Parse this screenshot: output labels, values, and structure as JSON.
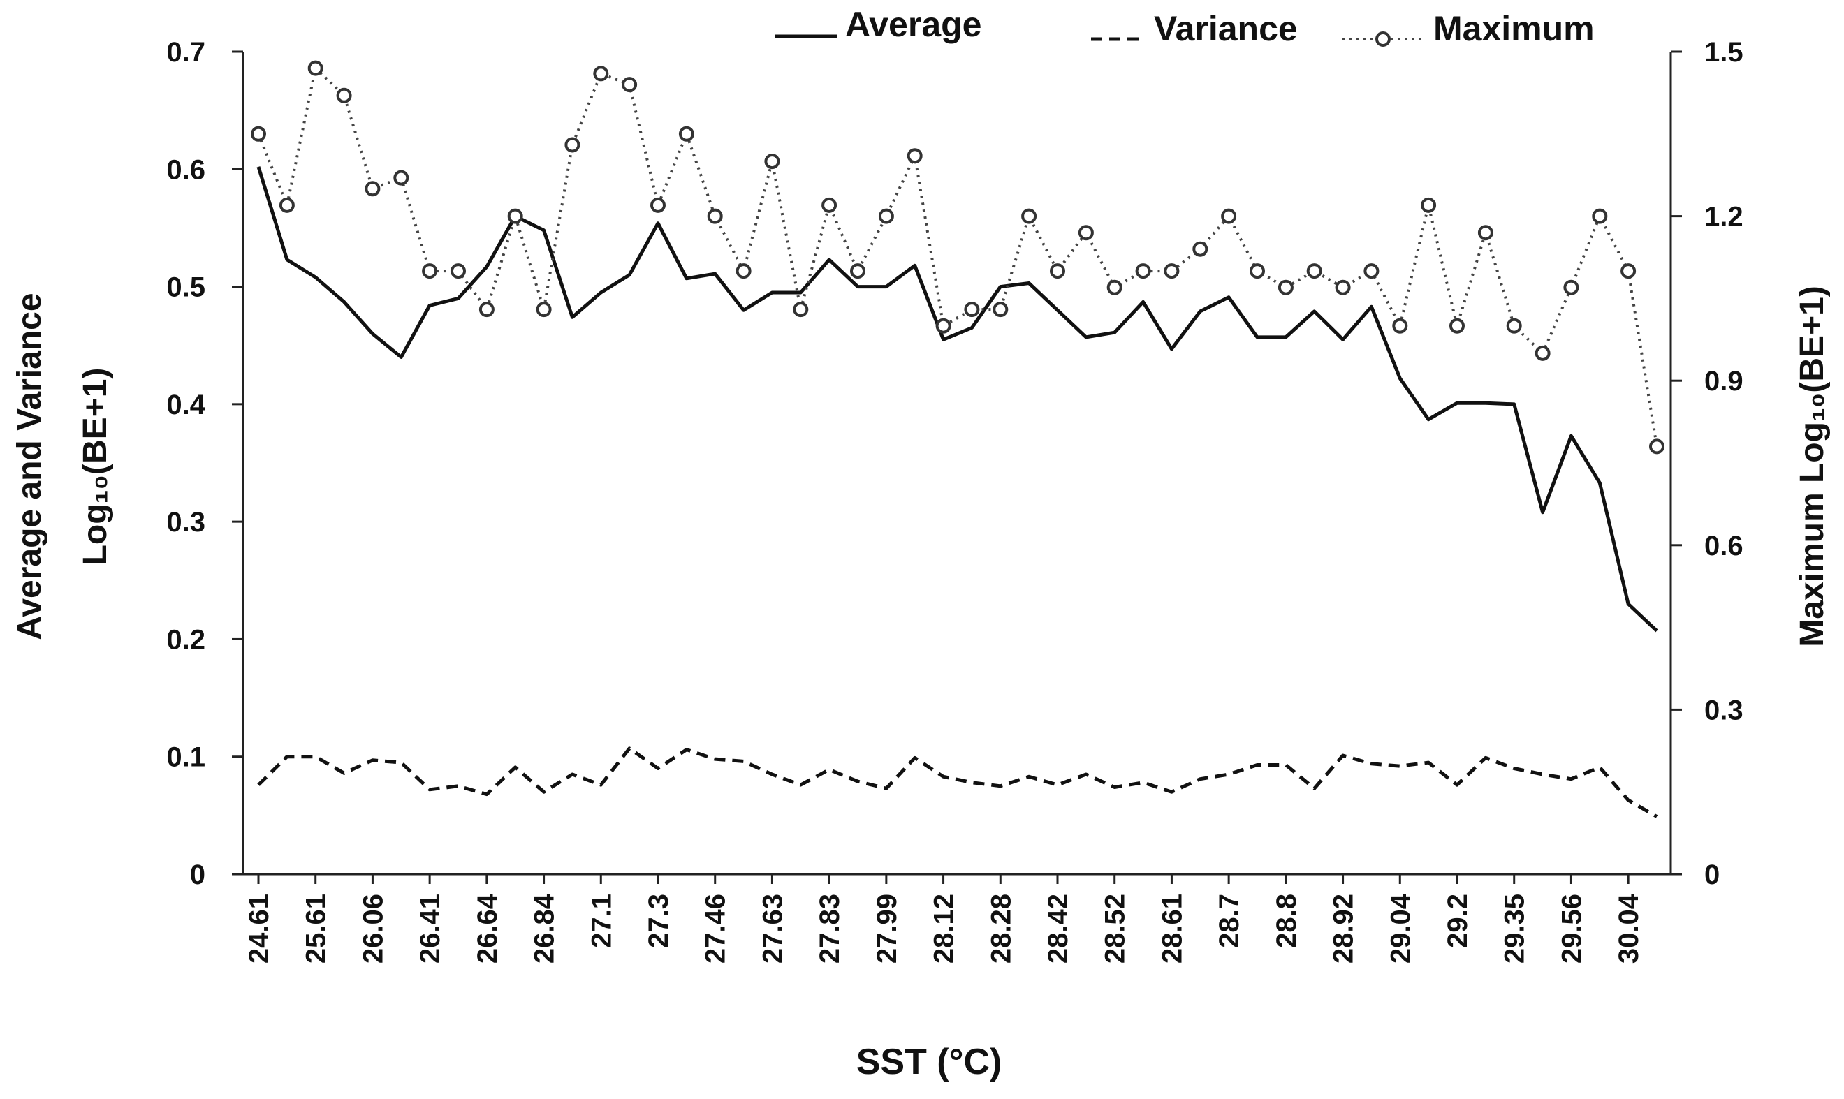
{
  "chart_data": {
    "type": "line",
    "xlabel": "SST (°C)",
    "ylabel_left_line1": "Average and Variance",
    "ylabel_left_line2": "Log₁₀(BE+1)",
    "ylabel_right": "Maximum Log₁₀(BE+1)",
    "ylim_left": [
      0,
      0.7
    ],
    "ylim_right": [
      0,
      1.5
    ],
    "yticks_left": [
      "0",
      "0.1",
      "0.2",
      "0.3",
      "0.4",
      "0.5",
      "0.6",
      "0.7"
    ],
    "yticks_right": [
      "0",
      "0.3",
      "0.6",
      "0.9",
      "1.2",
      "1.5"
    ],
    "x_tick_labels": [
      "24.61",
      "25.61",
      "26.06",
      "26.41",
      "26.64",
      "26.84",
      "27.1",
      "27.3",
      "27.46",
      "27.63",
      "27.83",
      "27.99",
      "28.12",
      "28.28",
      "28.42",
      "28.52",
      "28.61",
      "28.7",
      "28.8",
      "28.92",
      "29.04",
      "29.2",
      "29.35",
      "29.56",
      "30.04"
    ],
    "n_points": 50,
    "legend": [
      "Average",
      "Variance",
      "Maximum"
    ],
    "series": [
      {
        "name": "Average",
        "axis": "left",
        "style": "solid",
        "values": [
          0.602,
          0.523,
          0.508,
          0.487,
          0.46,
          0.44,
          0.484,
          0.49,
          0.517,
          0.56,
          0.548,
          0.474,
          0.495,
          0.51,
          0.554,
          0.507,
          0.511,
          0.48,
          0.495,
          0.495,
          0.523,
          0.5,
          0.5,
          0.518,
          0.455,
          0.465,
          0.5,
          0.503,
          0.48,
          0.457,
          0.461,
          0.487,
          0.447,
          0.479,
          0.491,
          0.457,
          0.457,
          0.479,
          0.455,
          0.483,
          0.422,
          0.387,
          0.401,
          0.401,
          0.4,
          0.308,
          0.373,
          0.333,
          0.23,
          0.207
        ]
      },
      {
        "name": "Variance",
        "axis": "left",
        "style": "dashed",
        "values": [
          0.076,
          0.1,
          0.1,
          0.086,
          0.097,
          0.095,
          0.072,
          0.075,
          0.068,
          0.091,
          0.07,
          0.085,
          0.076,
          0.107,
          0.09,
          0.106,
          0.098,
          0.096,
          0.085,
          0.076,
          0.089,
          0.079,
          0.073,
          0.099,
          0.083,
          0.078,
          0.075,
          0.083,
          0.076,
          0.085,
          0.074,
          0.078,
          0.07,
          0.081,
          0.085,
          0.093,
          0.093,
          0.073,
          0.101,
          0.094,
          0.092,
          0.095,
          0.076,
          0.099,
          0.09,
          0.085,
          0.081,
          0.091,
          0.063,
          0.049
        ]
      },
      {
        "name": "Maximum",
        "axis": "right",
        "style": "dotted-circle",
        "values": [
          1.35,
          1.22,
          1.47,
          1.42,
          1.25,
          1.27,
          1.1,
          1.1,
          1.03,
          1.2,
          1.03,
          1.33,
          1.46,
          1.44,
          1.22,
          1.35,
          1.2,
          1.1,
          1.3,
          1.03,
          1.22,
          1.1,
          1.2,
          1.31,
          1.0,
          1.03,
          1.03,
          1.2,
          1.1,
          1.17,
          1.07,
          1.1,
          1.1,
          1.14,
          1.2,
          1.1,
          1.07,
          1.1,
          1.07,
          1.1,
          1.0,
          1.22,
          1.0,
          1.17,
          1.0,
          0.95,
          1.07,
          1.2,
          1.1,
          0.78
        ]
      }
    ]
  }
}
